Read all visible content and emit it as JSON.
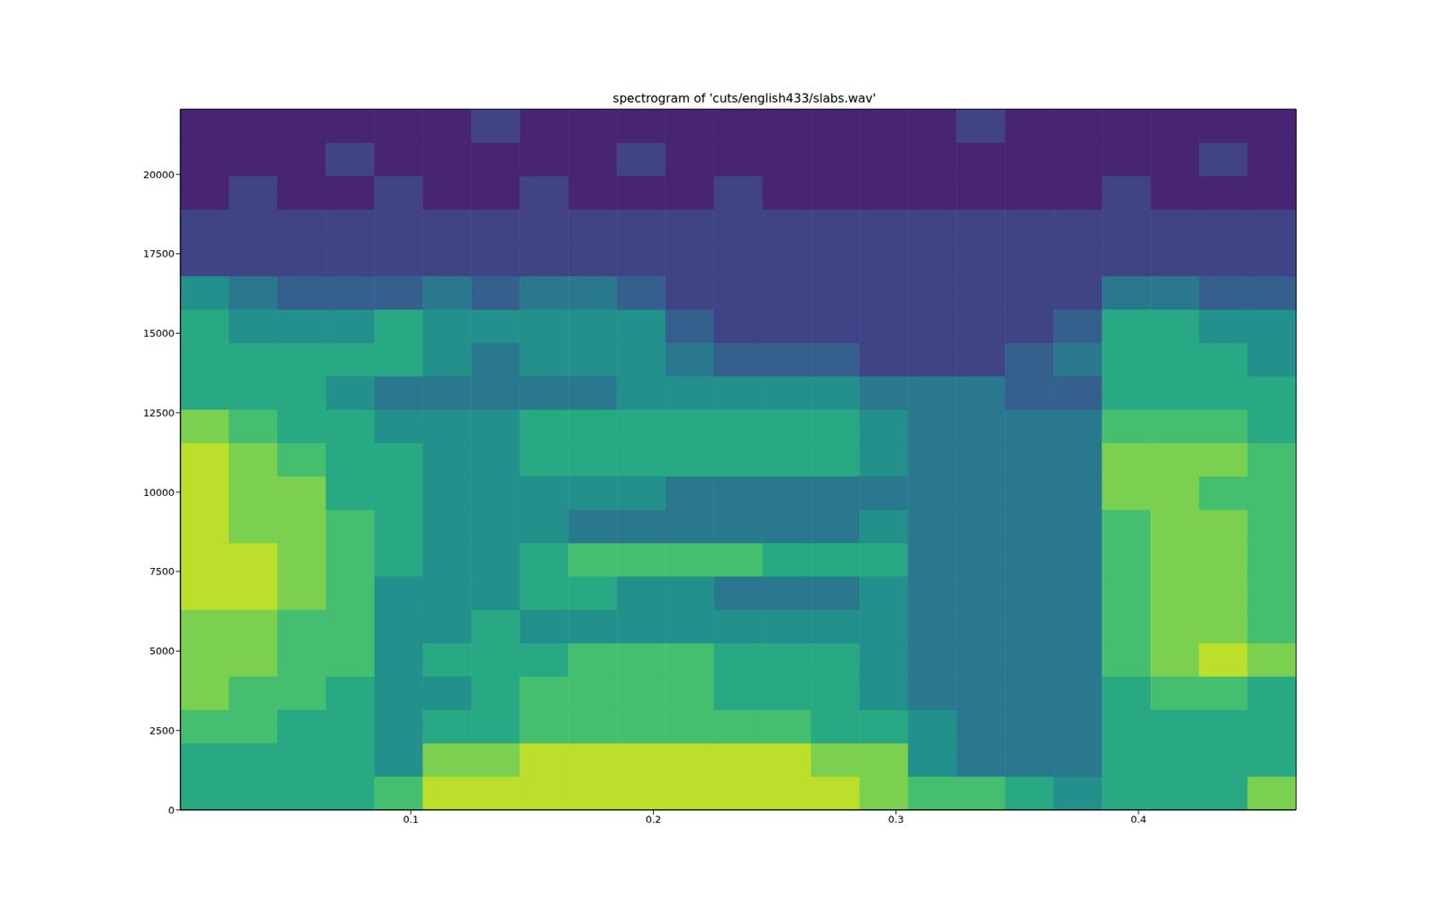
{
  "chart_data": {
    "type": "heatmap",
    "title": "spectrogram of 'cuts/english433/slabs.wav'",
    "x_bins": [
      0.005,
      0.025,
      0.045,
      0.065,
      0.085,
      0.105,
      0.125,
      0.145,
      0.165,
      0.185,
      0.205,
      0.225,
      0.245,
      0.265,
      0.285,
      0.305,
      0.325,
      0.345,
      0.365,
      0.385,
      0.405,
      0.425,
      0.445,
      0.465
    ],
    "y_bins": [
      0,
      1050,
      2100,
      3150,
      4200,
      5250,
      6300,
      7350,
      8400,
      9450,
      10500,
      11550,
      12600,
      13650,
      14700,
      15750,
      16800,
      17850,
      18900,
      19950,
      21000,
      22050
    ],
    "cells": [
      [
        6,
        6,
        6,
        6,
        7,
        9,
        9,
        9,
        9,
        9,
        9,
        9,
        9,
        9,
        8,
        7,
        7,
        6,
        5,
        6,
        6,
        6,
        8
      ],
      [
        6,
        6,
        6,
        6,
        5,
        8,
        8,
        9,
        9,
        9,
        9,
        9,
        9,
        8,
        8,
        5,
        4,
        4,
        4,
        6,
        6,
        6,
        6
      ],
      [
        7,
        7,
        6,
        6,
        5,
        6,
        6,
        7,
        7,
        7,
        7,
        7,
        7,
        6,
        6,
        5,
        4,
        4,
        4,
        6,
        6,
        6,
        6
      ],
      [
        8,
        7,
        7,
        6,
        5,
        5,
        6,
        7,
        7,
        7,
        7,
        6,
        6,
        6,
        5,
        4,
        4,
        4,
        4,
        6,
        7,
        7,
        6
      ],
      [
        8,
        8,
        7,
        7,
        5,
        6,
        6,
        6,
        7,
        7,
        7,
        6,
        6,
        6,
        5,
        4,
        4,
        4,
        4,
        7,
        8,
        9,
        8
      ],
      [
        8,
        8,
        7,
        7,
        5,
        5,
        6,
        5,
        5,
        5,
        5,
        5,
        5,
        5,
        5,
        4,
        4,
        4,
        4,
        7,
        8,
        8,
        7
      ],
      [
        9,
        9,
        8,
        7,
        5,
        5,
        5,
        6,
        6,
        5,
        5,
        4,
        4,
        4,
        5,
        4,
        4,
        4,
        4,
        7,
        8,
        8,
        7
      ],
      [
        9,
        9,
        8,
        7,
        6,
        5,
        5,
        6,
        7,
        7,
        7,
        7,
        6,
        6,
        6,
        4,
        4,
        4,
        4,
        7,
        8,
        8,
        7
      ],
      [
        9,
        8,
        8,
        7,
        6,
        5,
        5,
        5,
        4,
        4,
        4,
        4,
        4,
        4,
        5,
        4,
        4,
        4,
        4,
        7,
        8,
        8,
        7
      ],
      [
        9,
        8,
        8,
        6,
        6,
        5,
        5,
        5,
        5,
        5,
        4,
        4,
        4,
        4,
        4,
        4,
        4,
        4,
        4,
        8,
        8,
        7,
        7
      ],
      [
        9,
        8,
        7,
        6,
        6,
        5,
        5,
        6,
        6,
        6,
        6,
        6,
        6,
        6,
        5,
        4,
        4,
        4,
        4,
        8,
        8,
        8,
        7
      ],
      [
        8,
        7,
        6,
        6,
        5,
        5,
        5,
        6,
        6,
        6,
        6,
        6,
        6,
        6,
        5,
        4,
        4,
        4,
        4,
        7,
        7,
        7,
        6
      ],
      [
        6,
        6,
        6,
        5,
        4,
        4,
        4,
        4,
        4,
        5,
        5,
        5,
        5,
        5,
        4,
        4,
        4,
        3,
        3,
        6,
        6,
        6,
        6
      ],
      [
        6,
        6,
        6,
        6,
        6,
        5,
        4,
        5,
        5,
        5,
        4,
        3,
        3,
        3,
        2,
        2,
        2,
        3,
        4,
        6,
        6,
        6,
        5
      ],
      [
        6,
        5,
        5,
        5,
        6,
        5,
        5,
        5,
        5,
        5,
        3,
        2,
        2,
        2,
        2,
        2,
        2,
        2,
        3,
        6,
        6,
        5,
        5
      ],
      [
        5,
        4,
        3,
        3,
        3,
        4,
        3,
        4,
        4,
        3,
        2,
        2,
        2,
        2,
        2,
        2,
        2,
        2,
        2,
        4,
        4,
        3,
        3
      ],
      [
        2,
        2,
        2,
        2,
        2,
        2,
        2,
        2,
        2,
        2,
        2,
        2,
        2,
        2,
        2,
        2,
        2,
        2,
        2,
        2,
        2,
        2,
        2
      ],
      [
        2,
        2,
        2,
        2,
        2,
        2,
        2,
        2,
        2,
        2,
        2,
        2,
        2,
        2,
        2,
        2,
        2,
        2,
        2,
        2,
        2,
        2,
        2
      ],
      [
        1,
        2,
        1,
        1,
        2,
        1,
        1,
        2,
        1,
        1,
        1,
        2,
        1,
        1,
        1,
        1,
        1,
        1,
        1,
        2,
        1,
        1,
        1
      ],
      [
        1,
        1,
        1,
        2,
        1,
        1,
        1,
        1,
        1,
        2,
        1,
        1,
        1,
        1,
        1,
        1,
        1,
        1,
        1,
        1,
        1,
        2,
        1
      ],
      [
        1,
        1,
        1,
        1,
        1,
        1,
        2,
        1,
        1,
        1,
        1,
        1,
        1,
        1,
        1,
        1,
        2,
        1,
        1,
        1,
        1,
        1,
        1
      ]
    ],
    "zlim": [
      0,
      10
    ],
    "color": "viridis",
    "xlim": [
      0.005,
      0.465
    ],
    "ylim": [
      0,
      22050
    ],
    "xticks": [
      0.1,
      0.2,
      0.3,
      0.4
    ],
    "yticks": [
      0,
      2500,
      5000,
      7500,
      10000,
      12500,
      15000,
      17500,
      20000
    ],
    "grid": false
  }
}
